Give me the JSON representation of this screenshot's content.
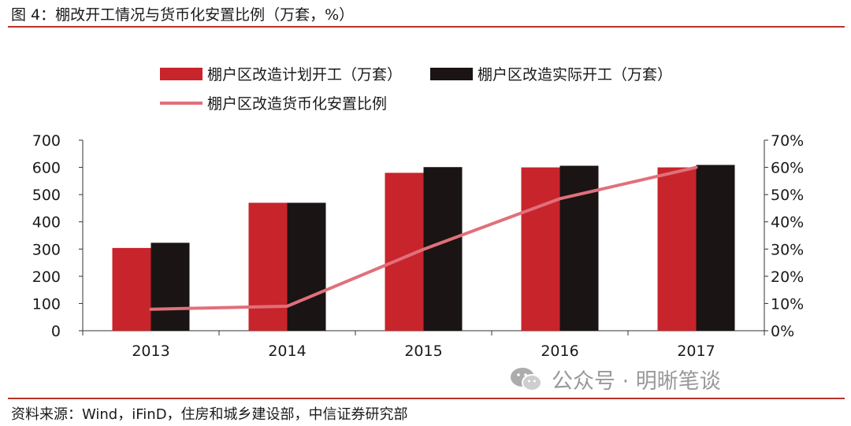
{
  "figure": {
    "title": "图 4：棚改开工情况与货币化安置比例（万套，%）",
    "source": "资料来源：Wind，iFinD，住房和城乡建设部，中信证券研究部"
  },
  "watermark": {
    "text": "公众号 · 明晰笔谈",
    "icon": "wechat-icon"
  },
  "colors": {
    "planned": "#c8242b",
    "actual": "#1a1414",
    "ratio": "#e0707a",
    "accent_rule": "#b8322b"
  },
  "chart_data": {
    "type": "bar",
    "categories": [
      "2013",
      "2014",
      "2015",
      "2016",
      "2017"
    ],
    "series": [
      {
        "name": "棚户区改造计划开工（万套）",
        "kind": "bar",
        "axis": "left",
        "values": [
          304,
          470,
          580,
          600,
          600
        ]
      },
      {
        "name": "棚户区改造实际开工（万套）",
        "kind": "bar",
        "axis": "left",
        "values": [
          323,
          470,
          601,
          606,
          609
        ]
      },
      {
        "name": "棚户区改造货币化安置比例",
        "kind": "line",
        "axis": "right",
        "values": [
          7.9,
          9.0,
          29.9,
          48.5,
          60.0
        ]
      }
    ],
    "y_left": {
      "min": 0,
      "max": 700,
      "ticks": [
        "0",
        "100",
        "200",
        "300",
        "400",
        "500",
        "600",
        "700"
      ]
    },
    "y_right": {
      "min": 0,
      "max": 70,
      "ticks": [
        "0%",
        "10%",
        "20%",
        "30%",
        "40%",
        "50%",
        "60%",
        "70%"
      ]
    },
    "legend_position": "top",
    "grid": false
  }
}
